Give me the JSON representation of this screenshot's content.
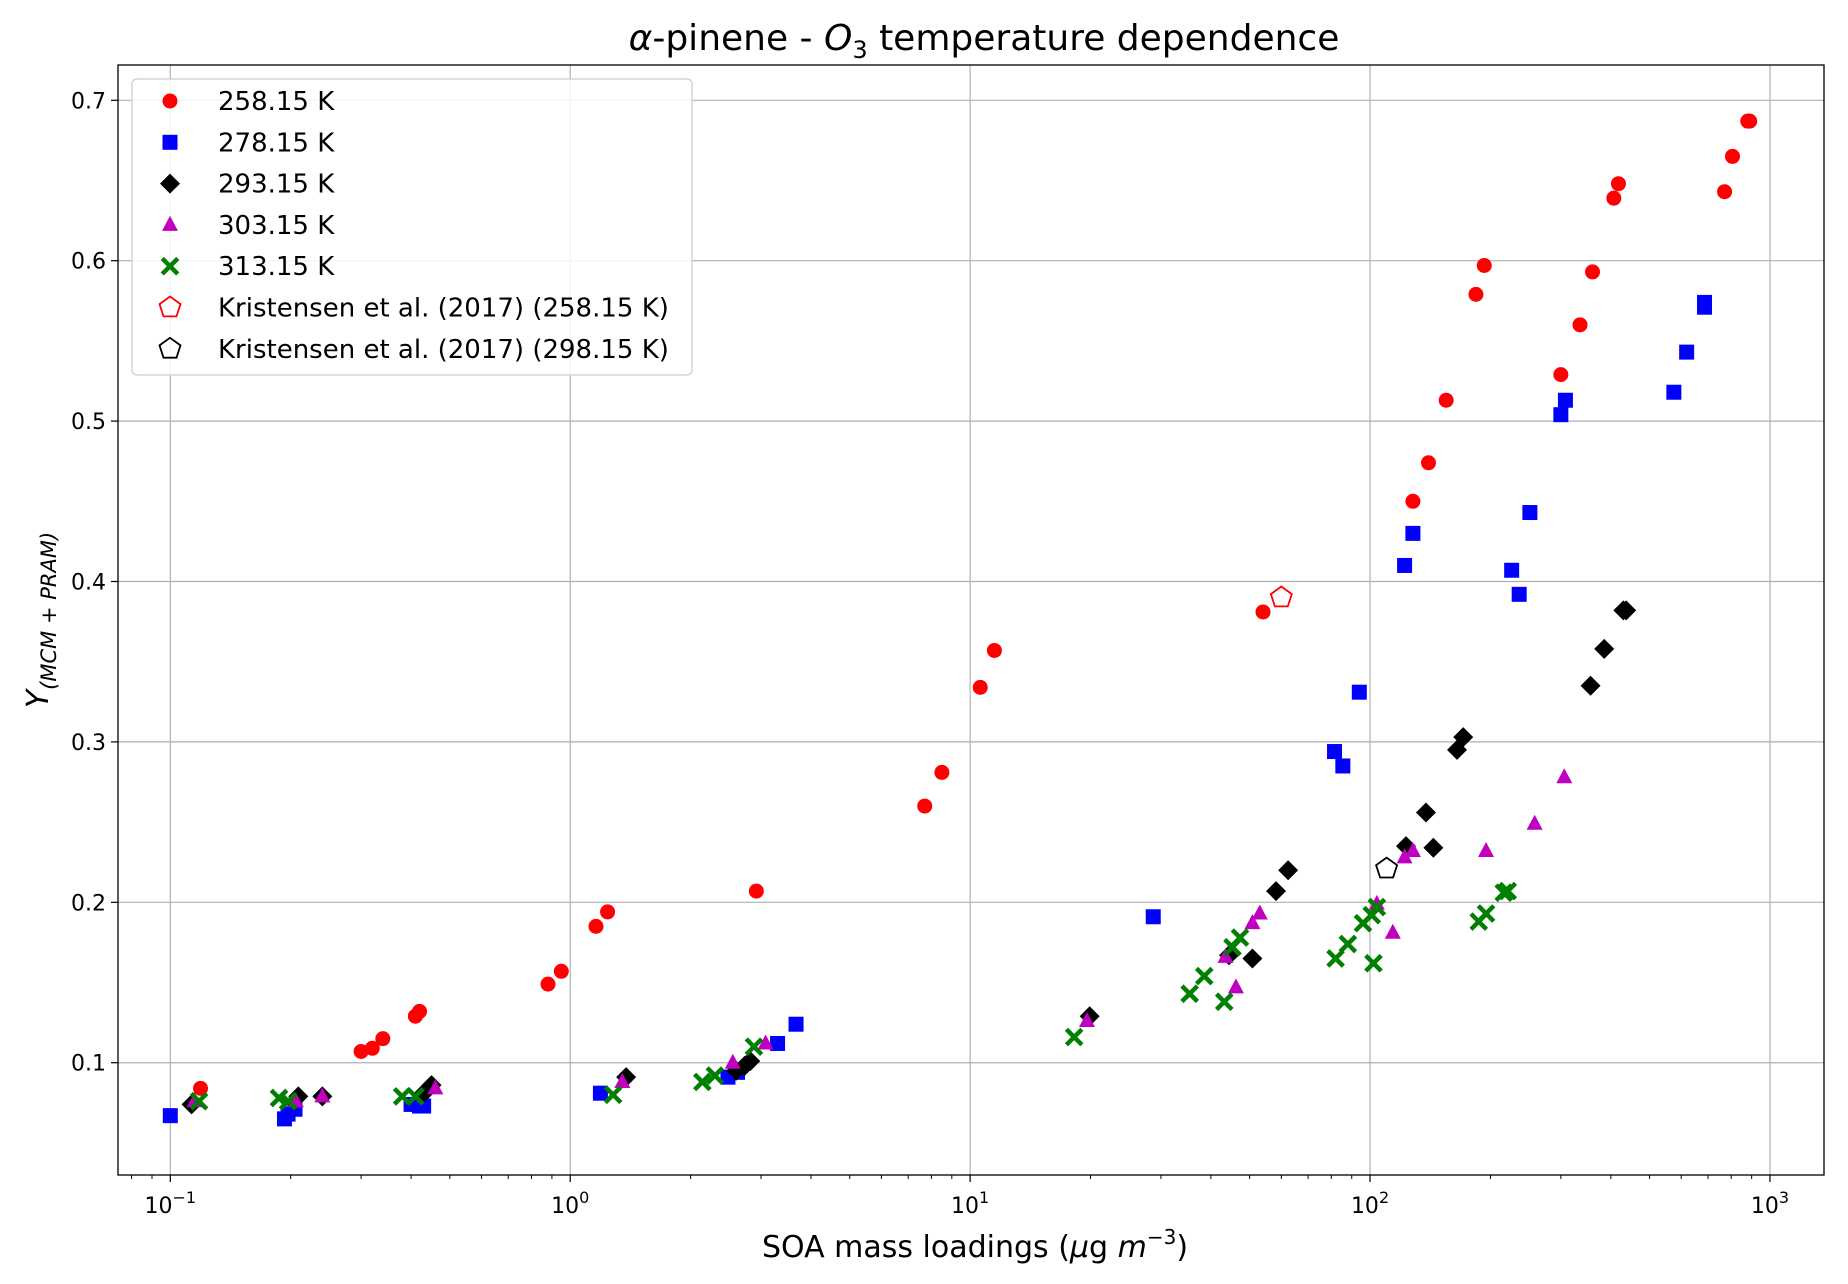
{
  "chart_data": {
    "type": "scatter",
    "title_parts": {
      "alpha": "α",
      "rest1": "-pinene - ",
      "O": "O",
      "sub": "3",
      "rest2": " temperature dependence"
    },
    "title": "α-pinene - O3 temperature dependence",
    "xlabel_parts": {
      "main": "SOA mass loadings (",
      "mu": "μ",
      "g": "g ",
      "m": "m",
      "sup": "−3",
      "close": ")"
    },
    "xlabel": "SOA mass loadings (μg m^-3)",
    "ylabel_parts": {
      "Y": "Y",
      "sub": "(MCM + PRAM)"
    },
    "ylabel": "Y(MCM + PRAM)",
    "xscale": "log",
    "xlim": [
      0.074,
      1365
    ],
    "ylim": [
      0.03,
      0.722
    ],
    "xticks": [
      0.1,
      1,
      10,
      100,
      1000
    ],
    "xtick_labels": [
      {
        "base": "10",
        "exp": "−1"
      },
      {
        "base": "10",
        "exp": "0"
      },
      {
        "base": "10",
        "exp": "1"
      },
      {
        "base": "10",
        "exp": "2"
      },
      {
        "base": "10",
        "exp": "3"
      }
    ],
    "yticks": [
      0.1,
      0.2,
      0.3,
      0.4,
      0.5,
      0.6,
      0.7
    ],
    "ytick_labels": [
      "0.1",
      "0.2",
      "0.3",
      "0.4",
      "0.5",
      "0.6",
      "0.7"
    ],
    "grid": true,
    "legend_position": "top-left",
    "series": [
      {
        "name": "258.15 K",
        "marker": "circle",
        "color": "#ff0000",
        "x": [
          0.119,
          0.3,
          0.32,
          0.34,
          0.41,
          0.42,
          0.88,
          0.95,
          1.16,
          1.24,
          2.92,
          7.7,
          8.5,
          10.6,
          11.5,
          54,
          128,
          140,
          155,
          184,
          193,
          300,
          335,
          360,
          407,
          418,
          770,
          806,
          880,
          890
        ],
        "y": [
          0.084,
          0.107,
          0.109,
          0.115,
          0.129,
          0.132,
          0.149,
          0.157,
          0.185,
          0.194,
          0.207,
          0.26,
          0.281,
          0.334,
          0.357,
          0.381,
          0.45,
          0.474,
          0.513,
          0.579,
          0.597,
          0.529,
          0.56,
          0.593,
          0.639,
          0.648,
          0.643,
          0.665,
          0.687,
          0.687
        ]
      },
      {
        "name": "278.15 K",
        "marker": "square",
        "color": "#0000ff",
        "x": [
          0.1,
          0.193,
          0.197,
          0.205,
          0.4,
          0.42,
          0.43,
          1.19,
          2.48,
          2.62,
          3.3,
          3.67,
          28.7,
          81.5,
          85.5,
          94,
          122,
          128,
          226,
          236,
          251,
          300,
          308,
          575,
          619,
          686,
          686
        ],
        "y": [
          0.067,
          0.065,
          0.068,
          0.071,
          0.074,
          0.073,
          0.073,
          0.081,
          0.091,
          0.094,
          0.112,
          0.124,
          0.191,
          0.294,
          0.285,
          0.331,
          0.41,
          0.43,
          0.407,
          0.392,
          0.443,
          0.504,
          0.513,
          0.518,
          0.543,
          0.571,
          0.574
        ]
      },
      {
        "name": "293.15 K",
        "marker": "diamond",
        "color": "#000000",
        "x": [
          0.113,
          0.209,
          0.24,
          0.43,
          0.45,
          1.38,
          2.6,
          2.73,
          2.82,
          19.9,
          44.4,
          50.8,
          58.2,
          62.4,
          123,
          138,
          144,
          165,
          171,
          356,
          385,
          430,
          437
        ],
        "y": [
          0.074,
          0.079,
          0.079,
          0.081,
          0.086,
          0.091,
          0.095,
          0.098,
          0.101,
          0.129,
          0.167,
          0.165,
          0.207,
          0.22,
          0.235,
          0.256,
          0.234,
          0.295,
          0.303,
          0.335,
          0.358,
          0.382,
          0.382
        ]
      },
      {
        "name": "303.15 K",
        "marker": "triangle",
        "color": "#bf00bf",
        "x": [
          0.115,
          0.206,
          0.24,
          0.46,
          1.35,
          2.55,
          3.08,
          19.6,
          43.5,
          46.2,
          50.8,
          53,
          104,
          114,
          122,
          128,
          195,
          258,
          306
        ],
        "y": [
          0.076,
          0.076,
          0.079,
          0.084,
          0.088,
          0.1,
          0.112,
          0.126,
          0.166,
          0.147,
          0.187,
          0.193,
          0.199,
          0.181,
          0.228,
          0.232,
          0.232,
          0.249,
          0.278
        ]
      },
      {
        "name": "313.15 K",
        "marker": "x",
        "color": "#008000",
        "x": [
          0.118,
          0.187,
          0.197,
          0.38,
          0.41,
          1.28,
          2.14,
          2.3,
          2.88,
          18.2,
          35.4,
          38.5,
          43.2,
          45.3,
          47.3,
          82,
          88,
          96,
          101,
          102,
          104,
          187,
          195,
          216,
          221
        ],
        "y": [
          0.076,
          0.078,
          0.076,
          0.079,
          0.079,
          0.08,
          0.088,
          0.092,
          0.11,
          0.116,
          0.143,
          0.154,
          0.138,
          0.172,
          0.178,
          0.165,
          0.174,
          0.187,
          0.192,
          0.162,
          0.197,
          0.188,
          0.193,
          0.206,
          0.207
        ]
      },
      {
        "name": "Kristensen et al. (2017) (258.15 K)",
        "marker": "pentagon-open",
        "color": "#ff0000",
        "x": [
          60
        ],
        "y": [
          0.39
        ]
      },
      {
        "name": "Kristensen et al. (2017) (298.15 K)",
        "marker": "pentagon-open",
        "color": "#000000",
        "x": [
          110
        ],
        "y": [
          0.221
        ]
      }
    ]
  }
}
